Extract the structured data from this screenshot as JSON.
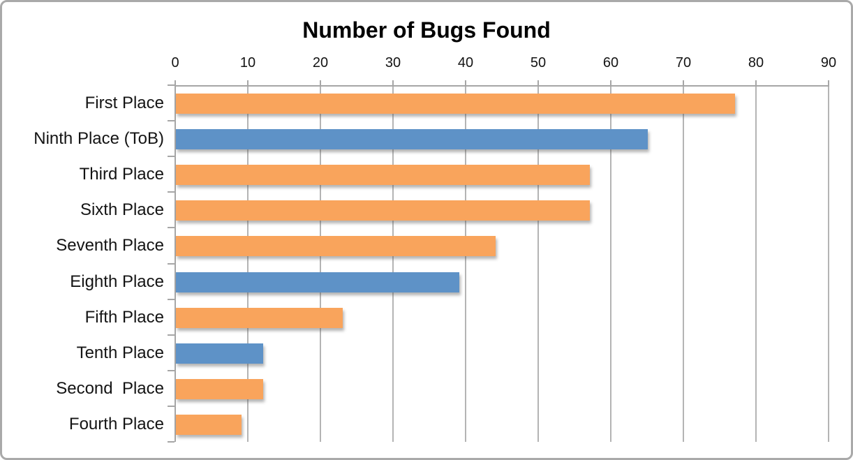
{
  "colors": {
    "bar_orange": "#F9A45C",
    "bar_blue": "#5E92C7",
    "gridline": "#B4B4B4",
    "axis_line": "#A6A6A6",
    "frame_border": "#A9A9A9",
    "background": "#FFFFFF",
    "title_text": "#000000",
    "label_text": "#141414"
  },
  "chart_data": {
    "type": "bar",
    "orientation": "horizontal",
    "title": "Number of Bugs Found",
    "categories": [
      "First Place",
      "Ninth Place (ToB)",
      "Third Place",
      "Sixth Place",
      "Seventh Place",
      "Eighth Place",
      "Fifth Place",
      "Tenth Place",
      "Second  Place",
      "Fourth Place"
    ],
    "values": [
      77,
      65,
      57,
      57,
      44,
      39,
      23,
      12,
      12,
      9
    ],
    "bar_colors": [
      "orange",
      "blue",
      "orange",
      "orange",
      "orange",
      "blue",
      "orange",
      "blue",
      "orange",
      "orange"
    ],
    "color_map": {
      "orange": "#F9A45C",
      "blue": "#5E92C7"
    },
    "xlabel": "",
    "ylabel": "",
    "x_axis": {
      "min": 0,
      "max": 90,
      "tick_step": 10,
      "tick_labels": [
        "0",
        "10",
        "20",
        "30",
        "40",
        "50",
        "60",
        "70",
        "80",
        "90"
      ],
      "position": "top"
    },
    "grid": true,
    "legend": "none"
  }
}
